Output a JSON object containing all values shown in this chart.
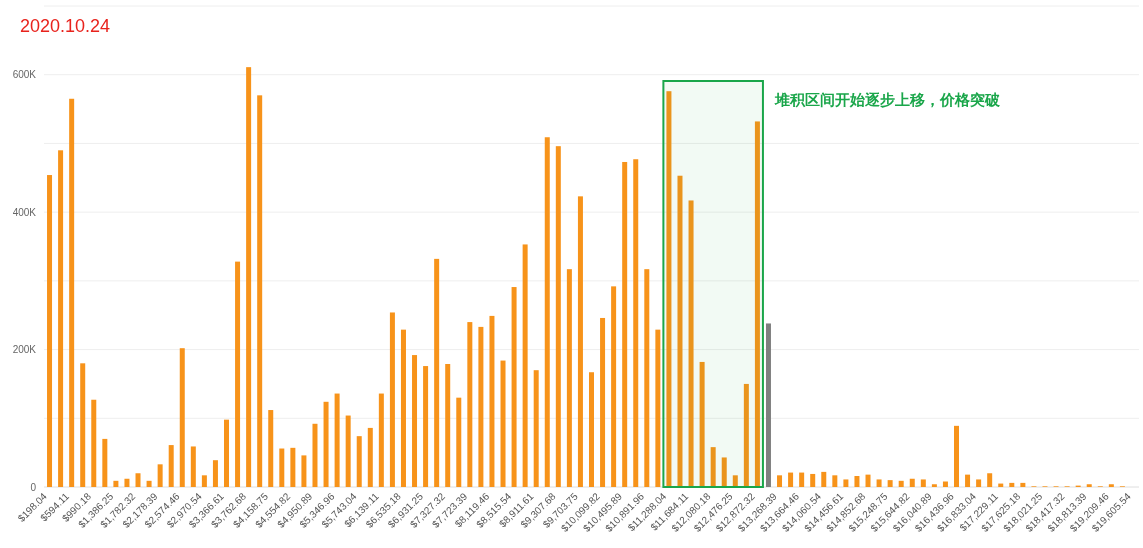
{
  "chart_data": {
    "type": "bar",
    "title": "2020.10.24",
    "categories": [
      "$198.04",
      null,
      "$594.11",
      null,
      "$990.18",
      null,
      "$1,386.25",
      null,
      "$1,782.32",
      null,
      "$2,178.39",
      null,
      "$2,574.46",
      null,
      "$2,970.54",
      null,
      "$3,366.61",
      null,
      "$3,762.68",
      null,
      "$4,158.75",
      null,
      "$4,554.82",
      null,
      "$4,950.89",
      null,
      "$5,346.96",
      null,
      "$5,743.04",
      null,
      "$6,139.11",
      null,
      "$6,535.18",
      null,
      "$6,931.25",
      null,
      "$7,327.32",
      null,
      "$7,723.39",
      null,
      "$8,119.46",
      null,
      "$8,515.54",
      null,
      "$8,911.61",
      null,
      "$9,307.68",
      null,
      "$9,703.75",
      null,
      "$10,099.82",
      null,
      "$10,495.89",
      null,
      "$10,891.96",
      null,
      "$11,288.04",
      null,
      "$11,684.11",
      null,
      "$12,080.18",
      null,
      "$12,476.25",
      null,
      "$12,872.32",
      null,
      "$13,268.39",
      null,
      "$13,664.46",
      null,
      "$14,060.54",
      null,
      "$14,456.61",
      null,
      "$14,852.68",
      null,
      "$15,248.75",
      null,
      "$15,644.82",
      null,
      "$16,040.89",
      null,
      "$16,436.96",
      null,
      "$16,833.04",
      null,
      "$17,229.11",
      null,
      "$17,625.18",
      null,
      "$18,021.25",
      null,
      "$18,417.32",
      null,
      "$18,813.39",
      null,
      "$19,209.46",
      null,
      "$19,605.54"
    ],
    "values": [
      454000,
      490000,
      565000,
      180000,
      127000,
      70000,
      9000,
      12000,
      20000,
      9000,
      33000,
      61000,
      202000,
      59000,
      17000,
      39000,
      98000,
      328000,
      611000,
      570000,
      112000,
      56000,
      57000,
      46000,
      92000,
      124000,
      136000,
      104000,
      74000,
      86000,
      136000,
      254000,
      229000,
      192000,
      176000,
      332000,
      179000,
      130000,
      240000,
      233000,
      249000,
      184000,
      291000,
      353000,
      170000,
      509000,
      496000,
      317000,
      423000,
      167000,
      246000,
      292000,
      473000,
      477000,
      317000,
      229000,
      576000,
      453000,
      417000,
      182000,
      58000,
      43000,
      17000,
      150000,
      532000,
      238000,
      17000,
      21000,
      21000,
      19000,
      22000,
      17000,
      11000,
      16000,
      18000,
      11000,
      10000,
      9000,
      12000,
      11000,
      4000,
      8000,
      89000,
      18000,
      11000,
      20000,
      5000,
      6000,
      6000,
      1000,
      1000,
      1000,
      1000,
      2000,
      4000,
      1000,
      4000,
      1000,
      0
    ],
    "colors": [
      "#f7931a",
      "#f7931a",
      "#f7931a",
      "#f7931a",
      "#f7931a",
      "#f7931a",
      "#f7931a",
      "#f7931a",
      "#f7931a",
      "#f7931a",
      "#f7931a",
      "#f7931a",
      "#f7931a",
      "#f7931a",
      "#f7931a",
      "#f7931a",
      "#f7931a",
      "#f7931a",
      "#f7931a",
      "#f7931a",
      "#f7931a",
      "#f7931a",
      "#f7931a",
      "#f7931a",
      "#f7931a",
      "#f7931a",
      "#f7931a",
      "#f7931a",
      "#f7931a",
      "#f7931a",
      "#f7931a",
      "#f7931a",
      "#f7931a",
      "#f7931a",
      "#f7931a",
      "#f7931a",
      "#f7931a",
      "#f7931a",
      "#f7931a",
      "#f7931a",
      "#f7931a",
      "#f7931a",
      "#f7931a",
      "#f7931a",
      "#f7931a",
      "#f7931a",
      "#f7931a",
      "#f7931a",
      "#f7931a",
      "#f7931a",
      "#f7931a",
      "#f7931a",
      "#f7931a",
      "#f7931a",
      "#f7931a",
      "#f7931a",
      "#f7931a",
      "#f7931a",
      "#f7931a",
      "#f7931a",
      "#f7931a",
      "#f7931a",
      "#f7931a",
      "#f7931a",
      "#f7931a",
      "#7f7f7f",
      "#f7931a",
      "#f7931a",
      "#f7931a",
      "#f7931a",
      "#f7931a",
      "#f7931a",
      "#f7931a",
      "#f7931a",
      "#f7931a",
      "#f7931a",
      "#f7931a",
      "#f7931a",
      "#f7931a",
      "#f7931a",
      "#f7931a",
      "#f7931a",
      "#f7931a",
      "#f7931a",
      "#f7931a",
      "#f7931a",
      "#f7931a",
      "#f7931a",
      "#f7931a",
      "#f7931a",
      "#f7931a",
      "#f7931a",
      "#f7931a",
      "#f7931a",
      "#f7931a",
      "#f7931a",
      "#f7931a",
      "#f7931a",
      "#f7931a"
    ],
    "ylim": [
      0,
      700000
    ],
    "yticks": [
      {
        "value": 0,
        "label": "0"
      },
      {
        "value": 100000,
        "label": null
      },
      {
        "value": 200000,
        "label": "200K"
      },
      {
        "value": 300000,
        "label": null
      },
      {
        "value": 400000,
        "label": "400K"
      },
      {
        "value": 500000,
        "label": null
      },
      {
        "value": 600000,
        "label": "600K"
      },
      {
        "value": 700000,
        "label": null
      }
    ],
    "grid": "y",
    "bands": [
      {
        "axis": "x",
        "from": "$11,288.04",
        "to": "$12,872.32",
        "label": "堆积区间开始逐步上移，价格突破",
        "color": "#1aa64a"
      }
    ]
  }
}
